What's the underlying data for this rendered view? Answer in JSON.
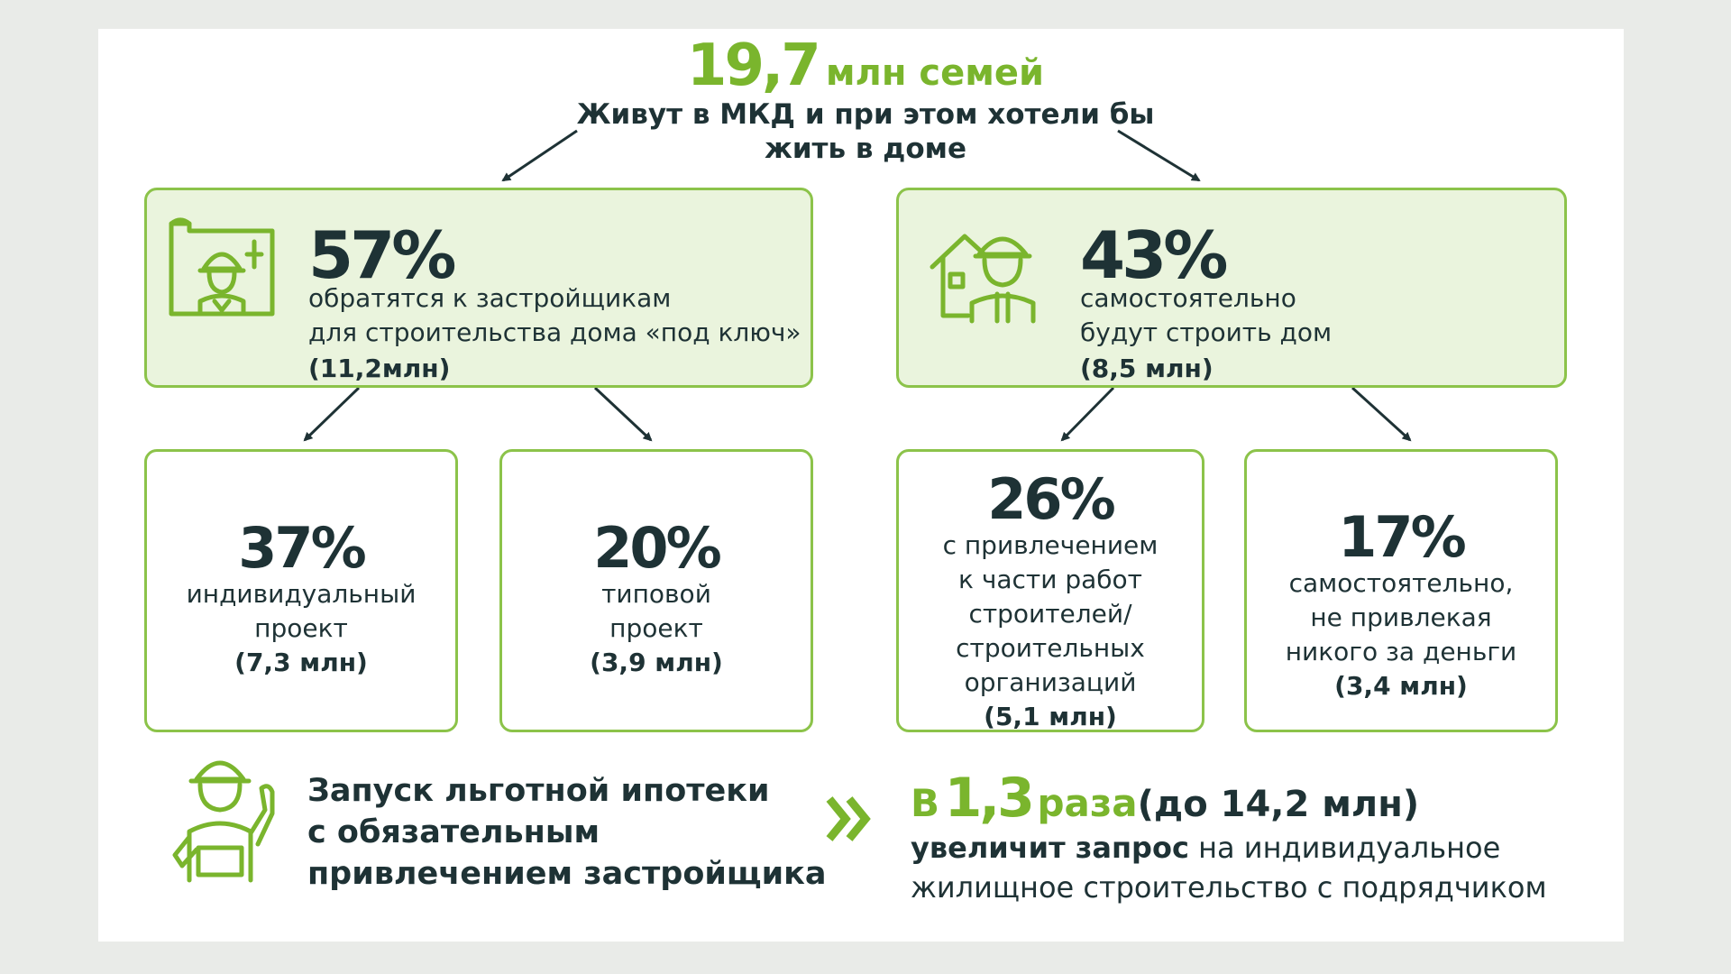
{
  "header": {
    "number": "19,7",
    "unit": "млн семей",
    "description_lines": [
      "Живут в МКД и при этом  хотели бы",
      "жить в доме"
    ]
  },
  "left_group": {
    "percent": "57%",
    "lines": [
      "обратятся к застройщикам",
      "для строительства дома «под ключ»"
    ],
    "amount": "(11,2млн)",
    "children": [
      {
        "percent": "37%",
        "lines": [
          "индивидуальный",
          "проект"
        ],
        "amount": "(7,3 млн)"
      },
      {
        "percent": "20%",
        "lines": [
          "типовой",
          "проект"
        ],
        "amount": "(3,9 млн)"
      }
    ]
  },
  "right_group": {
    "percent": "43%",
    "lines": [
      "самостоятельно",
      "будут строить дом"
    ],
    "amount": "(8,5 млн)",
    "children": [
      {
        "percent": "26%",
        "lines": [
          "с привлечением",
          "к части работ",
          "строителей/",
          "строительных",
          "организаций"
        ],
        "amount": "(5,1 млн)"
      },
      {
        "percent": "17%",
        "lines": [
          "самостоятельно,",
          "не привлекая",
          "никого за деньги"
        ],
        "amount": "(3,4 млн)"
      }
    ]
  },
  "footer": {
    "left_lines": [
      "Запуск льготной ипотеки",
      "с обязательным",
      "привлечением застройщика"
    ],
    "right_prefix": "В",
    "right_multiplier": "1,3",
    "right_unit": "раза",
    "right_detail": "(до 14,2 млн)",
    "right_line2_strong": "увеличит запрос",
    "right_line2_rest": "на индивидуальное",
    "right_line3": "жилищное строительство с подрядчиком"
  },
  "icons": [
    "blueprint-builder-icon",
    "house-builder-icon",
    "builder-thumbs-up-icon",
    "double-chevron-right-icon"
  ],
  "colors": {
    "accent_green": "#7ab52d",
    "box_border": "#8cc34a",
    "box_fill": "#eaf4dd",
    "text_dark": "#1e3235"
  }
}
